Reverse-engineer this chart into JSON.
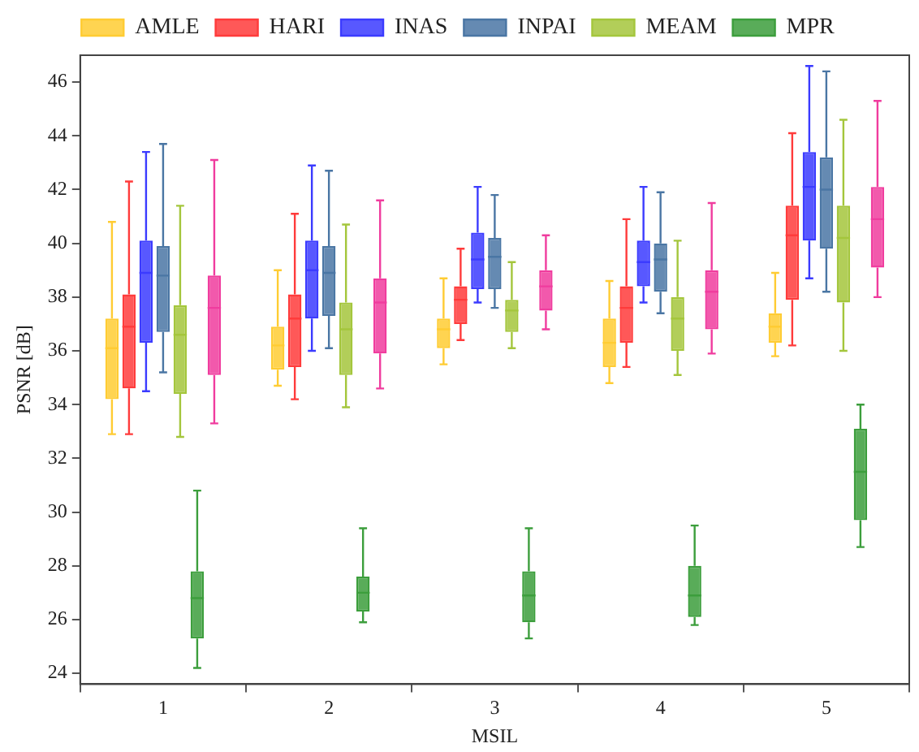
{
  "chart_data": {
    "type": "box",
    "xlabel": "MSIL",
    "ylabel": "PSNR [dB]",
    "categories": [
      "1",
      "2",
      "3",
      "4",
      "5"
    ],
    "ylim": [
      23.6,
      47
    ],
    "yticks": [
      24,
      26,
      28,
      30,
      32,
      34,
      36,
      38,
      40,
      42,
      44,
      46
    ],
    "grid": false,
    "legend": "top",
    "series": [
      {
        "name": "AMLE",
        "color": "#ffcc33",
        "boxes": [
          {
            "low": 32.9,
            "q1": 34.2,
            "median": 36.1,
            "q3": 37.2,
            "high": 40.8
          },
          {
            "low": 34.7,
            "q1": 35.3,
            "median": 36.2,
            "q3": 36.9,
            "high": 39.0
          },
          {
            "low": 35.5,
            "q1": 36.1,
            "median": 36.8,
            "q3": 37.2,
            "high": 38.7
          },
          {
            "low": 34.8,
            "q1": 35.4,
            "median": 36.3,
            "q3": 37.2,
            "high": 38.6
          },
          {
            "low": 35.8,
            "q1": 36.3,
            "median": 36.9,
            "q3": 37.4,
            "high": 38.9
          }
        ]
      },
      {
        "name": "HARI",
        "color": "#ff3b3b",
        "boxes": [
          {
            "low": 32.9,
            "q1": 34.6,
            "median": 36.9,
            "q3": 38.1,
            "high": 42.3
          },
          {
            "low": 34.2,
            "q1": 35.4,
            "median": 37.2,
            "q3": 38.1,
            "high": 41.1
          },
          {
            "low": 36.4,
            "q1": 37.0,
            "median": 37.9,
            "q3": 38.4,
            "high": 39.8
          },
          {
            "low": 35.4,
            "q1": 36.3,
            "median": 37.6,
            "q3": 38.4,
            "high": 40.9
          },
          {
            "low": 36.2,
            "q1": 37.9,
            "median": 40.3,
            "q3": 41.4,
            "high": 44.1
          }
        ]
      },
      {
        "name": "INAS",
        "color": "#3b3bff",
        "boxes": [
          {
            "low": 34.5,
            "q1": 36.3,
            "median": 38.9,
            "q3": 40.1,
            "high": 43.4
          },
          {
            "low": 36.0,
            "q1": 37.2,
            "median": 39.0,
            "q3": 40.1,
            "high": 42.9
          },
          {
            "low": 37.8,
            "q1": 38.3,
            "median": 39.4,
            "q3": 40.4,
            "high": 42.1
          },
          {
            "low": 37.8,
            "q1": 38.4,
            "median": 39.3,
            "q3": 40.1,
            "high": 42.1
          },
          {
            "low": 38.7,
            "q1": 40.1,
            "median": 42.1,
            "q3": 43.4,
            "high": 46.6
          }
        ]
      },
      {
        "name": "INPAI",
        "color": "#4a76a4",
        "boxes": [
          {
            "low": 35.2,
            "q1": 36.7,
            "median": 38.8,
            "q3": 39.9,
            "high": 43.7
          },
          {
            "low": 36.1,
            "q1": 37.3,
            "median": 38.9,
            "q3": 39.9,
            "high": 42.7
          },
          {
            "low": 37.6,
            "q1": 38.3,
            "median": 39.5,
            "q3": 40.2,
            "high": 41.8
          },
          {
            "low": 37.4,
            "q1": 38.2,
            "median": 39.4,
            "q3": 40.0,
            "high": 41.9
          },
          {
            "low": 38.2,
            "q1": 39.8,
            "median": 42.0,
            "q3": 43.2,
            "high": 46.4
          }
        ]
      },
      {
        "name": "MEAM",
        "color": "#a4c63c",
        "boxes": [
          {
            "low": 32.8,
            "q1": 34.4,
            "median": 36.6,
            "q3": 37.7,
            "high": 41.4
          },
          {
            "low": 33.9,
            "q1": 35.1,
            "median": 36.8,
            "q3": 37.8,
            "high": 40.7
          },
          {
            "low": 36.1,
            "q1": 36.7,
            "median": 37.5,
            "q3": 37.9,
            "high": 39.3
          },
          {
            "low": 35.1,
            "q1": 36.0,
            "median": 37.2,
            "q3": 38.0,
            "high": 40.1
          },
          {
            "low": 36.0,
            "q1": 37.8,
            "median": 40.2,
            "q3": 41.4,
            "high": 44.6
          }
        ]
      },
      {
        "name": "MPR",
        "color": "#3c9e3c",
        "boxes": [
          {
            "low": 24.2,
            "q1": 25.3,
            "median": 26.8,
            "q3": 27.8,
            "high": 30.8
          },
          {
            "low": 25.9,
            "q1": 26.3,
            "median": 27.0,
            "q3": 27.6,
            "high": 29.4
          },
          {
            "low": 25.3,
            "q1": 25.9,
            "median": 26.9,
            "q3": 27.8,
            "high": 29.4
          },
          {
            "low": 25.8,
            "q1": 26.1,
            "median": 26.9,
            "q3": 28.0,
            "high": 29.5
          },
          {
            "low": 28.7,
            "q1": 29.7,
            "median": 31.5,
            "q3": 33.1,
            "high": 34.0
          }
        ]
      },
      {
        "color": "#f03c9e",
        "boxes": [
          {
            "low": 33.3,
            "q1": 35.1,
            "median": 37.6,
            "q3": 38.8,
            "high": 43.1
          },
          {
            "low": 34.6,
            "q1": 35.9,
            "median": 37.8,
            "q3": 38.7,
            "high": 41.6
          },
          {
            "low": 36.8,
            "q1": 37.5,
            "median": 38.4,
            "q3": 39.0,
            "high": 40.3
          },
          {
            "low": 35.9,
            "q1": 36.8,
            "median": 38.2,
            "q3": 39.0,
            "high": 41.5
          },
          {
            "low": 38.0,
            "q1": 39.1,
            "median": 40.9,
            "q3": 42.1,
            "high": 45.3
          }
        ]
      }
    ]
  }
}
